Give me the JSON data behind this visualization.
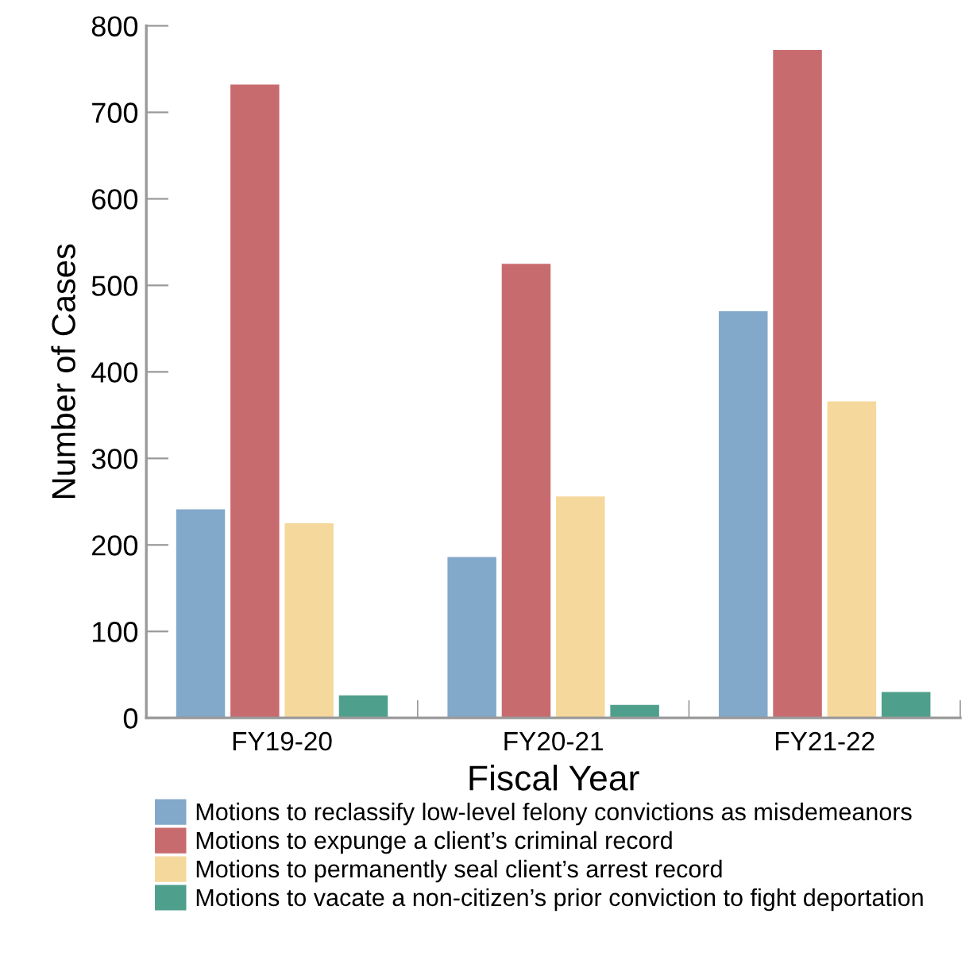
{
  "chart_data": {
    "type": "bar",
    "xlabel": "Fiscal Year",
    "ylabel": "Number of Cases",
    "categories": [
      "FY19-20",
      "FY20-21",
      "FY21-22"
    ],
    "series": [
      {
        "name": "Motions to reclassify low-level felony convictions as misdemeanors",
        "color": "#82a8ca",
        "values": [
          241,
          186,
          470
        ]
      },
      {
        "name": "Motions to expunge a client’s criminal record",
        "color": "#c86b6f",
        "values": [
          732,
          525,
          772
        ]
      },
      {
        "name": "Motions to permanently seal client’s arrest record",
        "color": "#f5d89c",
        "values": [
          225,
          256,
          366
        ]
      },
      {
        "name": "Motions to vacate a non-citizen’s prior conviction to fight deportation",
        "color": "#4e9f8c",
        "values": [
          26,
          15,
          30
        ]
      }
    ],
    "ylim": [
      0,
      800
    ],
    "yticks": [
      0,
      100,
      200,
      300,
      400,
      500,
      600,
      700,
      800
    ],
    "grid": false,
    "legend": "bottom"
  }
}
